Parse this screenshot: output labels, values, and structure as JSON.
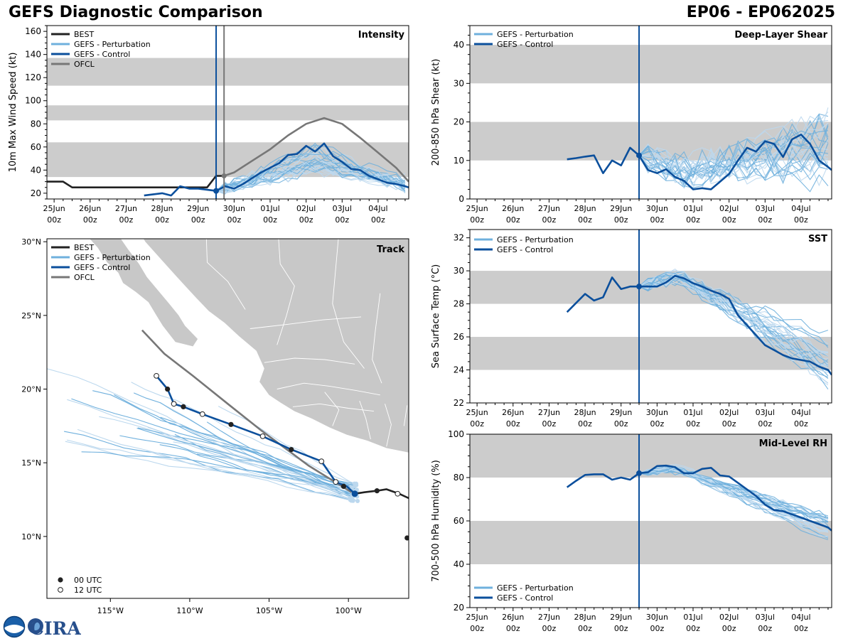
{
  "header": {
    "title": "GEFS Diagnostic Comparison",
    "storm_id": "EP06 - EP062025"
  },
  "colors": {
    "best": "#222222",
    "perturbation": "#6fb0dd",
    "perturbation_light": "#bcd8ee",
    "control": "#0b4f9c",
    "ofcl": "#777777",
    "band": "#cccccc",
    "land": "#c8c8c8"
  },
  "time_axis": {
    "tick_labels": [
      [
        "25Jun",
        "00z"
      ],
      [
        "26Jun",
        "00z"
      ],
      [
        "27Jun",
        "00z"
      ],
      [
        "28Jun",
        "00z"
      ],
      [
        "29Jun",
        "00z"
      ],
      [
        "30Jun",
        "00z"
      ],
      [
        "01Jul",
        "00z"
      ],
      [
        "02Jul",
        "00z"
      ],
      [
        "03Jul",
        "00z"
      ],
      [
        "04Jul",
        "00z"
      ]
    ],
    "range_days": [
      -0.2,
      9.85
    ],
    "init_day": 4.5,
    "ofcl_init_day": 4.72
  },
  "legends": {
    "best": "BEST",
    "perturbation": "GEFS - Perturbation",
    "control": "GEFS - Control",
    "ofcl": "OFCL",
    "utc00": "00 UTC",
    "utc12": "12 UTC"
  },
  "chart_data": [
    {
      "id": "intensity",
      "type": "line",
      "title": "Intensity",
      "ylabel": "10m Max Wind Speed (kt)",
      "ylim": [
        15,
        165
      ],
      "yticks": [
        20,
        40,
        60,
        80,
        100,
        120,
        140,
        160
      ],
      "bands": [
        [
          34,
          64
        ],
        [
          83,
          96
        ],
        [
          113,
          137
        ]
      ],
      "series": [
        {
          "name": "BEST",
          "x": [
            -0.2,
            0.25,
            0.5,
            4.25,
            4.5,
            4.72
          ],
          "y": [
            30,
            30,
            25,
            25,
            35,
            35
          ]
        },
        {
          "name": "GEFS - Control",
          "x": [
            2.5,
            3.0,
            3.25,
            3.5,
            3.75,
            4.0,
            4.5,
            4.75,
            5.0,
            5.25,
            5.5,
            5.75,
            6.0,
            6.25,
            6.5,
            6.75,
            7.0,
            7.25,
            7.5,
            7.75,
            8.0,
            8.25,
            8.5,
            8.75,
            9.0,
            9.25,
            9.5,
            9.75,
            9.85
          ],
          "y": [
            18,
            20,
            18,
            26,
            24,
            24,
            22,
            26,
            24,
            28,
            33,
            38,
            42,
            46,
            53,
            54,
            61,
            56,
            63,
            52,
            47,
            41,
            40,
            35,
            32,
            29,
            28,
            26,
            25
          ]
        },
        {
          "name": "OFCL",
          "x": [
            4.72,
            5.0,
            5.5,
            6.0,
            6.5,
            7.0,
            7.5,
            8.0,
            8.5,
            9.0,
            9.5,
            9.85
          ],
          "y": [
            35,
            38,
            48,
            58,
            70,
            80,
            85,
            80,
            68,
            55,
            42,
            30
          ]
        }
      ],
      "ensemble": {
        "n": 28,
        "start": 4.5,
        "end": 9.85,
        "y0": 22,
        "peak": 50,
        "peak_spread": 12,
        "peak_day": 7.3,
        "end_val": 27,
        "end_spread": 5,
        "noise": 5,
        "floor": 15
      }
    },
    {
      "id": "shear",
      "type": "line",
      "title": "Deep-Layer Shear",
      "ylabel": "200-850 hPa Shear (kt)",
      "ylim": [
        0,
        45
      ],
      "yticks": [
        0,
        10,
        20,
        30,
        40
      ],
      "bands": [
        [
          10,
          20
        ],
        [
          30,
          40
        ]
      ],
      "series": [
        {
          "name": "GEFS - Control",
          "x": [
            2.5,
            2.75,
            3.0,
            3.25,
            3.5,
            3.75,
            4.0,
            4.25,
            4.5,
            4.75,
            5.0,
            5.25,
            5.5,
            5.75,
            6.0,
            6.25,
            6.5,
            6.75,
            7.0,
            7.25,
            7.5,
            7.75,
            8.0,
            8.25,
            8.5,
            8.75,
            9.0,
            9.25,
            9.5,
            9.75,
            9.85
          ],
          "y": [
            10.3,
            10.6,
            11.0,
            11.3,
            6.7,
            10.0,
            8.7,
            13.3,
            11.3,
            7.5,
            6.7,
            7.7,
            5.7,
            4.7,
            2.5,
            2.8,
            2.5,
            4.5,
            6.5,
            10.0,
            13.3,
            12.3,
            15.0,
            14.3,
            10.9,
            15.5,
            16.7,
            14.3,
            10.0,
            8.3,
            7.5
          ]
        }
      ],
      "ensemble": {
        "n": 28,
        "start": 4.5,
        "end": 9.85,
        "y0": 11.3,
        "peak": 7,
        "peak_spread": 2.5,
        "peak_day": 6.0,
        "end_val": 14,
        "end_spread": 8,
        "noise": 4,
        "floor": 0
      }
    },
    {
      "id": "sst",
      "type": "line",
      "title": "SST",
      "ylabel": "Sea Surface Temp (°C)",
      "ylim": [
        22,
        32.5
      ],
      "yticks": [
        22,
        24,
        26,
        28,
        30,
        32
      ],
      "bands": [
        [
          24,
          26
        ],
        [
          28,
          30
        ]
      ],
      "series": [
        {
          "name": "GEFS - Control",
          "x": [
            2.5,
            3.0,
            3.25,
            3.5,
            3.75,
            4.0,
            4.25,
            4.5,
            4.75,
            5.0,
            5.25,
            5.5,
            5.75,
            6.0,
            6.25,
            6.5,
            6.75,
            7.0,
            7.25,
            7.5,
            7.75,
            8.0,
            8.25,
            8.5,
            8.75,
            9.0,
            9.25,
            9.5,
            9.75,
            9.85
          ],
          "y": [
            27.5,
            28.6,
            28.2,
            28.4,
            29.6,
            28.9,
            29.05,
            29.05,
            29.05,
            29.05,
            29.3,
            29.7,
            29.55,
            29.25,
            29.05,
            28.8,
            28.6,
            28.3,
            27.3,
            26.7,
            26.1,
            25.5,
            25.2,
            24.9,
            24.7,
            24.6,
            24.5,
            24.2,
            24.0,
            23.7
          ]
        }
      ],
      "ensemble": {
        "n": 28,
        "start": 4.5,
        "end": 9.85,
        "y0": 29.05,
        "peak": 29.6,
        "peak_spread": 0.3,
        "peak_day": 5.6,
        "end_val": 24.5,
        "end_spread": 1.5,
        "noise": 0.4,
        "floor": 22
      }
    },
    {
      "id": "rh",
      "type": "line",
      "title": "Mid-Level RH",
      "ylabel": "700-500 hPa Humidity (%)",
      "ylim": [
        20,
        100
      ],
      "yticks": [
        20,
        40,
        60,
        80,
        100
      ],
      "bands": [
        [
          40,
          60
        ],
        [
          80,
          100
        ]
      ],
      "series": [
        {
          "name": "GEFS - Control",
          "x": [
            2.5,
            2.75,
            3.0,
            3.25,
            3.5,
            3.75,
            4.0,
            4.25,
            4.5,
            4.75,
            5.0,
            5.25,
            5.5,
            5.75,
            6.0,
            6.25,
            6.5,
            6.75,
            7.0,
            7.25,
            7.5,
            7.75,
            8.0,
            8.25,
            8.5,
            8.75,
            9.0,
            9.25,
            9.5,
            9.75,
            9.85
          ],
          "y": [
            75.5,
            78.5,
            81.2,
            81.5,
            81.5,
            79.0,
            80.0,
            79.0,
            82.0,
            82.5,
            85.3,
            85.5,
            84.8,
            82.0,
            82.0,
            84.0,
            84.5,
            81.0,
            80.5,
            77.5,
            74.5,
            71.5,
            67.5,
            65.0,
            64.5,
            63.0,
            61.5,
            60.0,
            58.5,
            57.0,
            55.5
          ]
        }
      ],
      "ensemble": {
        "n": 28,
        "start": 4.5,
        "end": 9.85,
        "y0": 82,
        "peak": 84,
        "peak_spread": 1.5,
        "peak_day": 5.5,
        "end_val": 56,
        "end_spread": 6,
        "noise": 1.5,
        "floor": 20
      }
    },
    {
      "id": "track",
      "type": "scatter",
      "title": "Track",
      "lon_range": [
        -119,
        -96.2
      ],
      "lat_range": [
        5.8,
        30.2
      ],
      "xtick_labels": [
        {
          "lon": -115,
          "label": "115°W"
        },
        {
          "lon": -110,
          "label": "110°W"
        },
        {
          "lon": -105,
          "label": "105°W"
        },
        {
          "lon": -100,
          "label": "100°W"
        }
      ],
      "ytick_labels": [
        {
          "lat": 10,
          "label": "10°N"
        },
        {
          "lat": 15,
          "label": "15°N"
        },
        {
          "lat": 20,
          "label": "20°N"
        },
        {
          "lat": 25,
          "label": "25°N"
        },
        {
          "lat": 30,
          "label": "30°N"
        }
      ],
      "best": [
        [
          -96.2,
          12.6
        ],
        [
          -96.8,
          12.9
        ],
        [
          -97.6,
          13.2
        ],
        [
          -98.2,
          13.1
        ],
        [
          -99.0,
          13.0
        ],
        [
          -99.6,
          12.9
        ]
      ],
      "best_00utc": [
        [
          -98.2,
          13.1
        ],
        [
          -96.3,
          9.9
        ]
      ],
      "best_12utc": [
        [
          -96.9,
          12.9
        ]
      ],
      "control": [
        [
          -99.6,
          12.9
        ],
        [
          -100.1,
          13.4
        ],
        [
          -100.8,
          13.7
        ],
        [
          -101.7,
          15.1
        ],
        [
          -103.6,
          15.9
        ],
        [
          -105.4,
          16.8
        ],
        [
          -107.4,
          17.6
        ],
        [
          -109.2,
          18.3
        ],
        [
          -110.4,
          18.8
        ],
        [
          -111.0,
          19.0
        ],
        [
          -111.4,
          20.0
        ],
        [
          -112.1,
          20.9
        ]
      ],
      "control_00utc": [
        [
          -100.3,
          13.4
        ],
        [
          -103.6,
          15.9
        ],
        [
          -107.4,
          17.6
        ],
        [
          -110.4,
          18.8
        ],
        [
          -111.4,
          20.0
        ]
      ],
      "control_12utc": [
        [
          -100.8,
          13.7
        ],
        [
          -101.7,
          15.1
        ],
        [
          -105.4,
          16.8
        ],
        [
          -109.2,
          18.3
        ],
        [
          -111.0,
          19.0
        ],
        [
          -112.1,
          20.9
        ]
      ],
      "ofcl": [
        [
          -99.8,
          13.0
        ],
        [
          -102.5,
          14.8
        ],
        [
          -105.5,
          17.2
        ],
        [
          -107.6,
          19.0
        ],
        [
          -109.8,
          20.9
        ],
        [
          -111.6,
          22.4
        ],
        [
          -113.0,
          24.0
        ]
      ],
      "ensemble": {
        "n": 28,
        "start": [
          -99.7,
          13.0
        ]
      }
    }
  ]
}
